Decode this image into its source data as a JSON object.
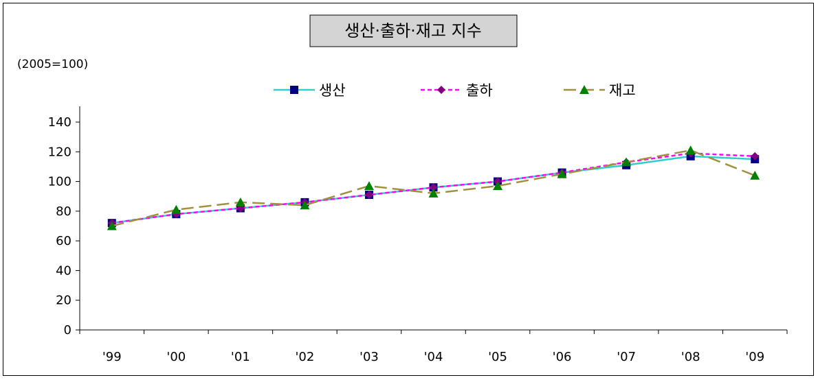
{
  "chart_data": {
    "type": "line",
    "title": "생산·출하·재고 지수",
    "unit_label": "(2005=100)",
    "xlabel": "",
    "ylabel": "",
    "ylim": [
      0,
      140
    ],
    "yticks": [
      0,
      20,
      40,
      60,
      80,
      100,
      120,
      140
    ],
    "grid": false,
    "legend_position": "top",
    "categories": [
      "'99",
      "'00",
      "'01",
      "'02",
      "'03",
      "'04",
      "'05",
      "'06",
      "'07",
      "'08",
      "'09"
    ],
    "series": [
      {
        "name": "생산",
        "color": "#33CCCC",
        "marker_color": "#000080",
        "marker": "square",
        "line_style": "solid",
        "values": [
          72,
          78,
          82,
          86,
          91,
          96,
          100,
          106,
          111,
          117,
          115
        ]
      },
      {
        "name": "출하",
        "color": "#FF00FF",
        "marker_color": "#800080",
        "marker": "diamond",
        "line_style": "dashed",
        "values": [
          72,
          78,
          82,
          86,
          91,
          96,
          100,
          106,
          113,
          119,
          117
        ]
      },
      {
        "name": "재고",
        "color": "#A09040",
        "marker_color": "#008000",
        "marker": "triangle",
        "line_style": "longdash",
        "values": [
          70,
          81,
          86,
          84,
          97,
          92,
          97,
          105,
          113,
          121,
          104
        ]
      }
    ]
  }
}
